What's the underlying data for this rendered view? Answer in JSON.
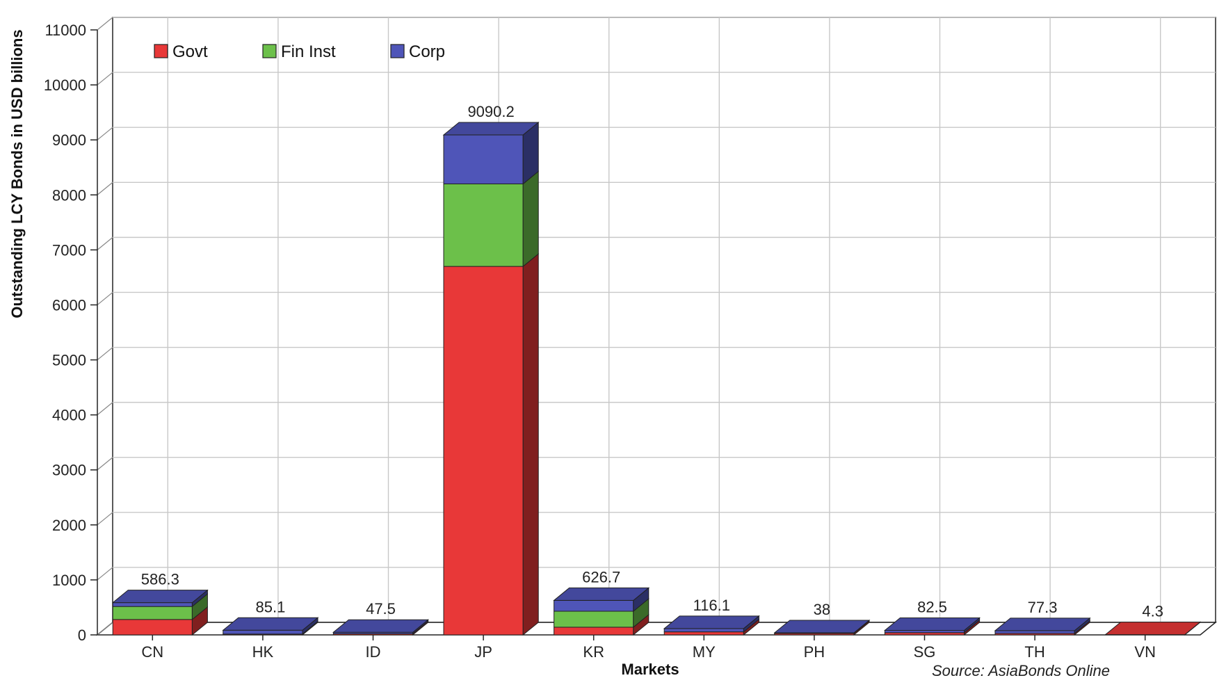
{
  "chart_data": {
    "type": "bar",
    "stacked": true,
    "three_d": true,
    "categories": [
      "CN",
      "HK",
      "ID",
      "JP",
      "KR",
      "MY",
      "PH",
      "SG",
      "TH",
      "VN"
    ],
    "series": [
      {
        "name": "Govt",
        "color": "#e83838",
        "values": [
          280,
          15,
          20,
          6700,
          140,
          55,
          25,
          40,
          25,
          4.3
        ]
      },
      {
        "name": "Fin Inst",
        "color": "#6cc04a",
        "values": [
          236.3,
          0,
          0,
          1500,
          290,
          0,
          0,
          0,
          0,
          0
        ]
      },
      {
        "name": "Corp",
        "color": "#4f55b8",
        "values": [
          70,
          70.1,
          27.5,
          890.2,
          196.7,
          61.1,
          13,
          42.5,
          52.3,
          0
        ]
      }
    ],
    "totals": [
      586.3,
      85.1,
      47.5,
      9090.2,
      626.7,
      116.1,
      38,
      82.5,
      77.3,
      4.3
    ],
    "total_labels": [
      "586.3",
      "85.1",
      "47.5",
      "9090.2",
      "626.7",
      "116.1",
      "38",
      "82.5",
      "77.3",
      "4.3"
    ],
    "xlabel": "Markets",
    "ylabel": "Outstanding LCY Bonds in USD billions",
    "ylim": [
      0,
      11000
    ],
    "yticks": [
      0,
      1000,
      2000,
      3000,
      4000,
      5000,
      6000,
      7000,
      8000,
      9000,
      10000,
      11000
    ],
    "grid": true,
    "legend_position": "top-left",
    "source_note": "Source: AsiaBonds Online"
  }
}
